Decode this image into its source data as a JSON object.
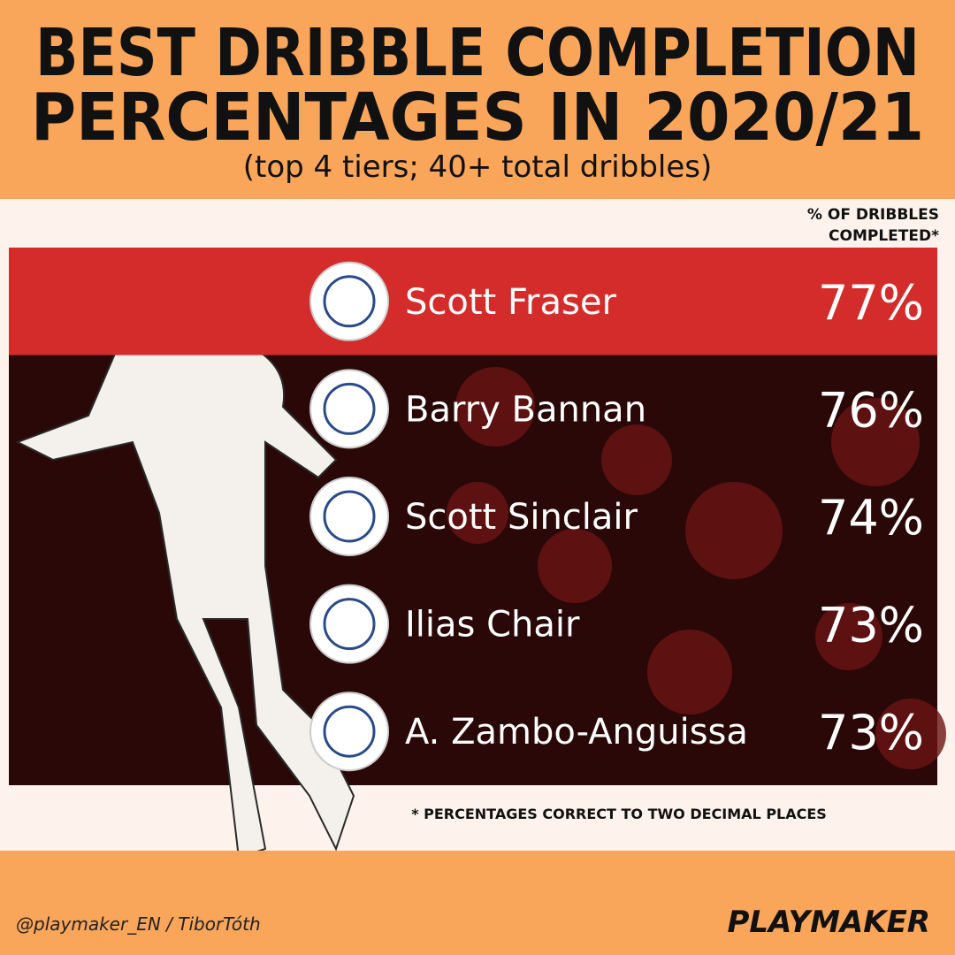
{
  "header": {
    "title_lines": [
      "BEST DRIBBLE COMPLETION",
      "PERCENTAGES IN 2020/21"
    ],
    "subtitle": "(top 4 tiers; 40+ total dribbles)"
  },
  "column_label": [
    "% OF DRIBBLES",
    "COMPLETED*"
  ],
  "rows": [
    {
      "player": "Scott Fraser",
      "percentage": "77%"
    },
    {
      "player": "Barry Bannan",
      "percentage": "76%"
    },
    {
      "player": "Scott Sinclair",
      "percentage": "74%"
    },
    {
      "player": "Ilias Chair",
      "percentage": "73%"
    },
    {
      "player": "A. Zambo-Anguissa",
      "percentage": "73%"
    }
  ],
  "footnote": "* PERCENTAGES CORRECT TO TWO DECIMAL PLACES",
  "footer": {
    "credit": "@playmaker_EN / TiborTóth",
    "brand": "PLAYMAKER"
  }
}
